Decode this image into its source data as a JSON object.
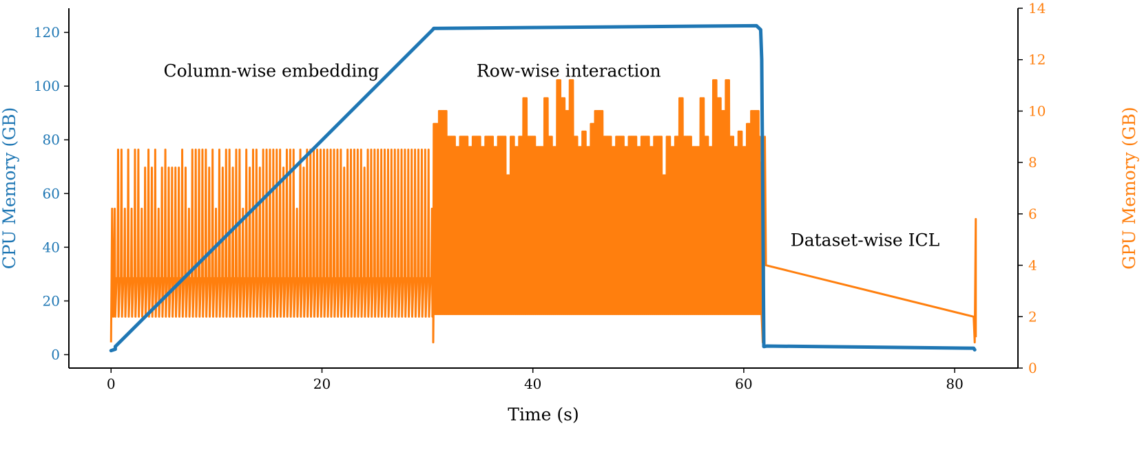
{
  "chart_data": {
    "type": "line",
    "xlabel": "Time (s)",
    "y_left_label": "CPU Memory (GB)",
    "y_right_label": "GPU Memory (GB)",
    "xlim": [
      -4,
      86
    ],
    "ylim_left": [
      -5,
      129
    ],
    "ylim_right": [
      0,
      14
    ],
    "x_ticks": [
      0,
      20,
      40,
      60,
      80
    ],
    "y_left_ticks": [
      0,
      20,
      40,
      60,
      80,
      100,
      120
    ],
    "y_right_ticks": [
      0,
      2,
      4,
      6,
      8,
      10,
      12,
      14
    ],
    "grid": false,
    "colors": {
      "cpu": "#1f77b4",
      "gpu": "#ff7f0e",
      "axis": "#000000"
    },
    "annotations": [
      {
        "text": "Column-wise embedding",
        "x": 15.2,
        "y_left": 103.5
      },
      {
        "text": "Row-wise interaction",
        "x": 43.4,
        "y_left": 103.5
      },
      {
        "text": "Dataset-wise ICL",
        "x": 71.5,
        "y_left": 40.5
      }
    ],
    "series": [
      {
        "axis": "left",
        "color": "#1f77b4",
        "points": [
          [
            0,
            1.5
          ],
          [
            0.4,
            2
          ],
          [
            0.4,
            3
          ],
          [
            30.5,
            121
          ],
          [
            30.6,
            121.5
          ],
          [
            61.2,
            122.5
          ],
          [
            61.6,
            121
          ],
          [
            61.7,
            110
          ],
          [
            61.8,
            60
          ],
          [
            61.9,
            3
          ],
          [
            62.2,
            3.2
          ],
          [
            81.8,
            2.4
          ],
          [
            81.9,
            1.8
          ]
        ]
      },
      {
        "axis": "right",
        "color": "#ff7f0e",
        "phases": [
          {
            "start": 0.3,
            "end": 30.5,
            "period": 0.32,
            "low": 2.0,
            "base": 3.5,
            "peaks": [
              6.2,
              8.5,
              8.5,
              6.2,
              8.5,
              6.2,
              8.5,
              8.5,
              6.2,
              7.8,
              8.5,
              7.8,
              8.5,
              6.2,
              7.8,
              8.5,
              7.8,
              7.8,
              7.8,
              7.8,
              8.5,
              7.8,
              6.2,
              8.5,
              8.5,
              8.5,
              8.5,
              8.5,
              7.8,
              8.5,
              6.2,
              8.5,
              7.8,
              8.5,
              8.5,
              7.8,
              8.5,
              8.5,
              6.2,
              8.5,
              7.8,
              8.5,
              8.5,
              7.8,
              8.5,
              8.5,
              8.5,
              8.5,
              8.5,
              8.5,
              7.8,
              8.5,
              8.5,
              8.5,
              6.2,
              8.5,
              7.8,
              8.5,
              8.5,
              8.5,
              8.5,
              8.5,
              8.5,
              8.5,
              8.5,
              8.5,
              8.5,
              8.5,
              7.8,
              8.5,
              8.5,
              8.5,
              8.5,
              8.5,
              7.8,
              8.5,
              8.5,
              8.5,
              8.5,
              8.5,
              8.5,
              8.5,
              8.5,
              8.5,
              8.5,
              8.5,
              8.5,
              8.5,
              8.5,
              8.5,
              8.5,
              8.5,
              8.5,
              8.5
            ]
          },
          {
            "start": 30.7,
            "end": 61.6,
            "period": 0.1,
            "low": 2.1,
            "peaks": [
              9.5,
              10.0,
              10.0,
              9.0,
              9.0,
              8.6,
              9.0,
              9.0,
              8.6,
              9.0,
              9.0,
              8.6,
              9.0,
              9.0,
              8.6,
              9.0,
              9.0,
              7.5,
              9.0,
              8.6,
              9.0,
              10.5,
              9.0,
              9.0,
              8.6,
              8.6,
              10.5,
              9.0,
              8.6,
              11.2,
              10.5,
              10.0,
              11.2,
              9.0,
              8.6,
              9.2,
              8.6
            ]
          }
        ],
        "tail": [
          [
            61.6,
            8.0
          ],
          [
            61.7,
            2.0
          ],
          [
            61.8,
            1.0
          ],
          [
            61.9,
            2.5
          ],
          [
            62.0,
            9.0
          ],
          [
            62.1,
            4.0
          ],
          [
            81.8,
            2.0
          ],
          [
            81.9,
            1.0
          ],
          [
            82.0,
            5.8
          ],
          [
            82.0,
            1.2
          ]
        ]
      }
    ]
  }
}
